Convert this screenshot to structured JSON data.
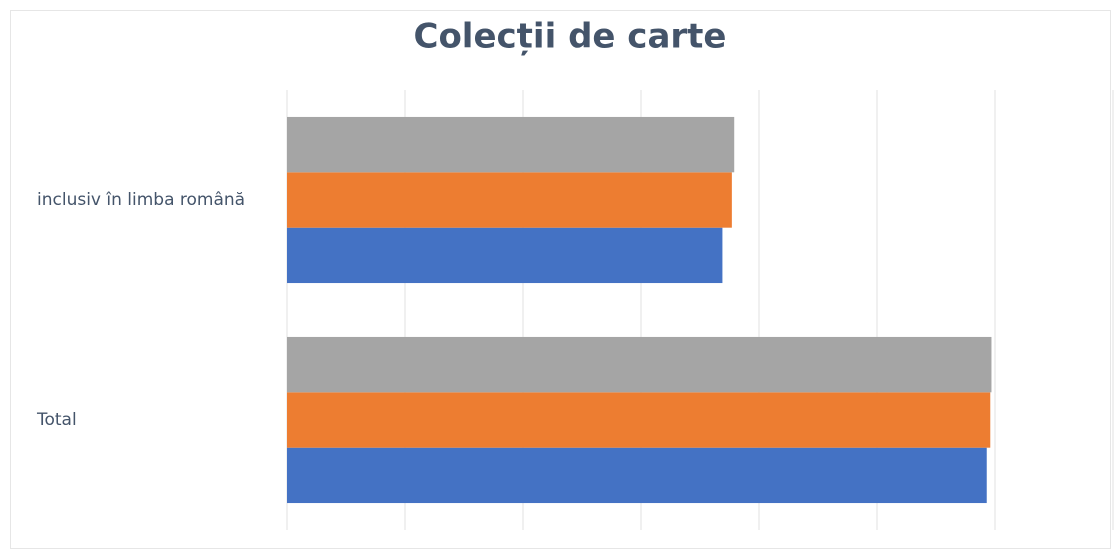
{
  "chart_data": {
    "type": "hbar",
    "title": "Colecții de carte",
    "categories": [
      "inclusiv în limba română",
      "Total"
    ],
    "series": [
      {
        "color": "#4472c4",
        "values": [
          3.69,
          5.93
        ]
      },
      {
        "color": "#ed7d31",
        "values": [
          3.77,
          5.96
        ]
      },
      {
        "color": "#a5a5a5",
        "values": [
          3.79,
          5.97
        ]
      }
    ],
    "xlim": [
      0,
      7
    ],
    "xticks": [
      0,
      1,
      2,
      3,
      4,
      5,
      6,
      7
    ],
    "grid": true
  }
}
